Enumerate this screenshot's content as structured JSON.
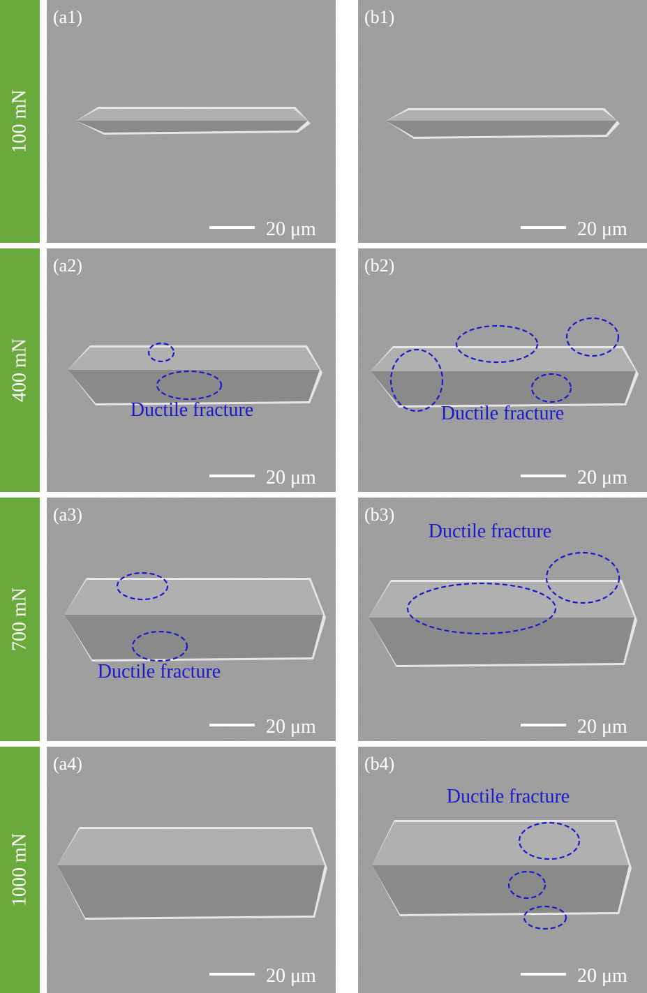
{
  "rows": [
    {
      "load": "100 mN",
      "panels": [
        {
          "label": "(a1)",
          "scale": "20 μm"
        },
        {
          "label": "(b1)",
          "scale": "20 μm"
        }
      ]
    },
    {
      "load": "400 mN",
      "panels": [
        {
          "label": "(a2)",
          "scale": "20 μm",
          "annotation": "Ductile fracture"
        },
        {
          "label": "(b2)",
          "scale": "20 μm",
          "annotation": "Ductile fracture"
        }
      ]
    },
    {
      "load": "700 mN",
      "panels": [
        {
          "label": "(a3)",
          "scale": "20 μm",
          "annotation": "Ductile fracture"
        },
        {
          "label": "(b3)",
          "scale": "20 μm",
          "annotation": "Ductile fracture"
        }
      ]
    },
    {
      "load": "1000 mN",
      "panels": [
        {
          "label": "(a4)",
          "scale": "20 μm"
        },
        {
          "label": "(b4)",
          "scale": "20 μm",
          "annotation": "Ductile fracture"
        }
      ]
    }
  ]
}
